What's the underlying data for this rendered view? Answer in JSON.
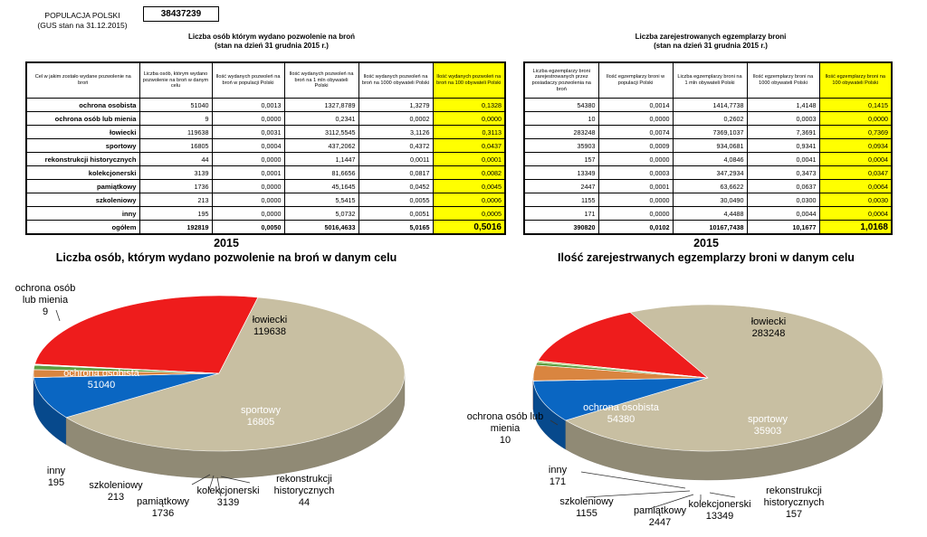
{
  "population": {
    "label_line1": "POPULACJA POLSKI",
    "label_line2": "(GUS stan na 31.12.2015)",
    "value": "38437239"
  },
  "table1": {
    "title_line1": "Liczba osób którym wydano pozwolenie na broń",
    "title_line2": "(stan na dzień 31 grudnia 2015 r.)",
    "headers": [
      "Cel w jakim zostało wydane pozwolenie na broń",
      "Liczba osób, którym wydano pozwolenie na broń w danym celu",
      "Ilość wydanych pozwoleń na broń w populacji Polski",
      "Ilość wydanych pozwoleń na broń na 1 mln obywateli Polski",
      "Ilość wydanych pozwoleń na broń na 1000 obywateli Polski",
      "Ilość wydanych pozwoleń na broń na 100 obywateli Polski"
    ],
    "rows": [
      [
        "ochrona osobista",
        "51040",
        "0,0013",
        "1327,8789",
        "1,3279",
        "0,1328"
      ],
      [
        "ochrona osób lub mienia",
        "9",
        "0,0000",
        "0,2341",
        "0,0002",
        "0,0000"
      ],
      [
        "łowiecki",
        "119638",
        "0,0031",
        "3112,5545",
        "3,1126",
        "0,3113"
      ],
      [
        "sportowy",
        "16805",
        "0,0004",
        "437,2062",
        "0,4372",
        "0,0437"
      ],
      [
        "rekonstrukcji historycznych",
        "44",
        "0,0000",
        "1,1447",
        "0,0011",
        "0,0001"
      ],
      [
        "kolekcjonerski",
        "3139",
        "0,0001",
        "81,6656",
        "0,0817",
        "0,0082"
      ],
      [
        "pamiątkowy",
        "1736",
        "0,0000",
        "45,1645",
        "0,0452",
        "0,0045"
      ],
      [
        "szkoleniowy",
        "213",
        "0,0000",
        "5,5415",
        "0,0055",
        "0,0006"
      ],
      [
        "inny",
        "195",
        "0,0000",
        "5,0732",
        "0,0051",
        "0,0005"
      ]
    ],
    "total": [
      "ogółem",
      "192819",
      "0,0050",
      "5016,4633",
      "5,0165",
      "0,5016"
    ]
  },
  "table2": {
    "title_line1": "Liczba  zarejestrowanych egzemplarzy broni",
    "title_line2": "(stan na dzień 31 grudnia 2015 r.)",
    "headers": [
      "Liczba egzemplarzy broni zarejestrowanych przez posiadaczy pozwolenia na broń",
      "Ilość egzemplarzy broni w populacji Polski",
      "Liczba egzemplarzy broni na 1 mln obywateli Polski",
      "Ilość egzemplarzy broni na 1000 obywateli Polski",
      "Ilość egzemplarzy broni na 100 obywateli Polski"
    ],
    "rows": [
      [
        "54380",
        "0,0014",
        "1414,7738",
        "1,4148",
        "0,1415"
      ],
      [
        "10",
        "0,0000",
        "0,2602",
        "0,0003",
        "0,0000"
      ],
      [
        "283248",
        "0,0074",
        "7369,1037",
        "7,3691",
        "0,7369"
      ],
      [
        "35903",
        "0,0009",
        "934,0681",
        "0,9341",
        "0,0934"
      ],
      [
        "157",
        "0,0000",
        "4,0846",
        "0,0041",
        "0,0004"
      ],
      [
        "13349",
        "0,0003",
        "347,2934",
        "0,3473",
        "0,0347"
      ],
      [
        "2447",
        "0,0001",
        "63,6622",
        "0,0637",
        "0,0064"
      ],
      [
        "1155",
        "0,0000",
        "30,0490",
        "0,0300",
        "0,0030"
      ],
      [
        "171",
        "0,0000",
        "4,4488",
        "0,0044",
        "0,0004"
      ]
    ],
    "total": [
      "390820",
      "0,0102",
      "10167,7438",
      "10,1677",
      "1,0168"
    ]
  },
  "colors": {
    "ochrona osobista": "#ee1c1c",
    "ochrona osób lub mienia": "#b8c21a",
    "łowiecki": "#c8bfa2",
    "sportowy": "#0a66c2",
    "rekonstrukcji historycznych": "#7a2b8c",
    "kolekcjonerski": "#d98540",
    "pamiątkowy": "#5c9e42",
    "szkoleniowy": "#9ad14a",
    "inny": "#c5d84d"
  },
  "chart_data": [
    {
      "type": "pie",
      "title": "2015",
      "subtitle": "Liczba osób, którym wydano pozwolenie na broń w danym celu",
      "series": [
        {
          "name": "ochrona osobista",
          "value": 51040
        },
        {
          "name": "ochrona osób lub mienia",
          "value": 9
        },
        {
          "name": "łowiecki",
          "value": 119638
        },
        {
          "name": "sportowy",
          "value": 16805
        },
        {
          "name": "rekonstrukcji historycznych",
          "value": 44
        },
        {
          "name": "kolekcjonerski",
          "value": 3139
        },
        {
          "name": "pamiątkowy",
          "value": 1736
        },
        {
          "name": "szkoleniowy",
          "value": 213
        },
        {
          "name": "inny",
          "value": 195
        }
      ],
      "labels": [
        {
          "lines": [
            "ochrona osób",
            "lub mienia",
            "9"
          ]
        },
        {
          "lines": [
            "łowiecki",
            "119638"
          ]
        },
        {
          "lines": [
            "ochrona osobista",
            "51040"
          ]
        },
        {
          "lines": [
            "sportowy",
            "16805"
          ]
        },
        {
          "lines": [
            "inny",
            "195"
          ]
        },
        {
          "lines": [
            "szkoleniowy",
            "213"
          ]
        },
        {
          "lines": [
            "pamiątkowy",
            "1736"
          ]
        },
        {
          "lines": [
            "kolekcjonerski",
            "3139"
          ]
        },
        {
          "lines": [
            "rekonstrukcji",
            "historycznych",
            "44"
          ]
        }
      ]
    },
    {
      "type": "pie",
      "title": "2015",
      "subtitle": "Ilość zarejestrwanych  egzemplarzy broni w danym celu",
      "series": [
        {
          "name": "ochrona osobista",
          "value": 54380
        },
        {
          "name": "ochrona osób lub mienia",
          "value": 10
        },
        {
          "name": "łowiecki",
          "value": 283248
        },
        {
          "name": "sportowy",
          "value": 35903
        },
        {
          "name": "rekonstrukcji historycznych",
          "value": 157
        },
        {
          "name": "kolekcjonerski",
          "value": 13349
        },
        {
          "name": "pamiątkowy",
          "value": 2447
        },
        {
          "name": "szkoleniowy",
          "value": 1155
        },
        {
          "name": "inny",
          "value": 171
        }
      ],
      "labels": [
        {
          "lines": [
            "łowiecki",
            "283248"
          ]
        },
        {
          "lines": [
            "ochrona osobista",
            "54380"
          ]
        },
        {
          "lines": [
            "sportowy",
            "35903"
          ]
        },
        {
          "lines": [
            "ochrona osób lub",
            "mienia",
            "10"
          ]
        },
        {
          "lines": [
            "inny",
            "171"
          ]
        },
        {
          "lines": [
            "szkoleniowy",
            "1155"
          ]
        },
        {
          "lines": [
            "pamiątkowy",
            "2447"
          ]
        },
        {
          "lines": [
            "kolekcjonerski",
            "13349"
          ]
        },
        {
          "lines": [
            "rekonstrukcji",
            "historycznych",
            "157"
          ]
        }
      ]
    }
  ]
}
